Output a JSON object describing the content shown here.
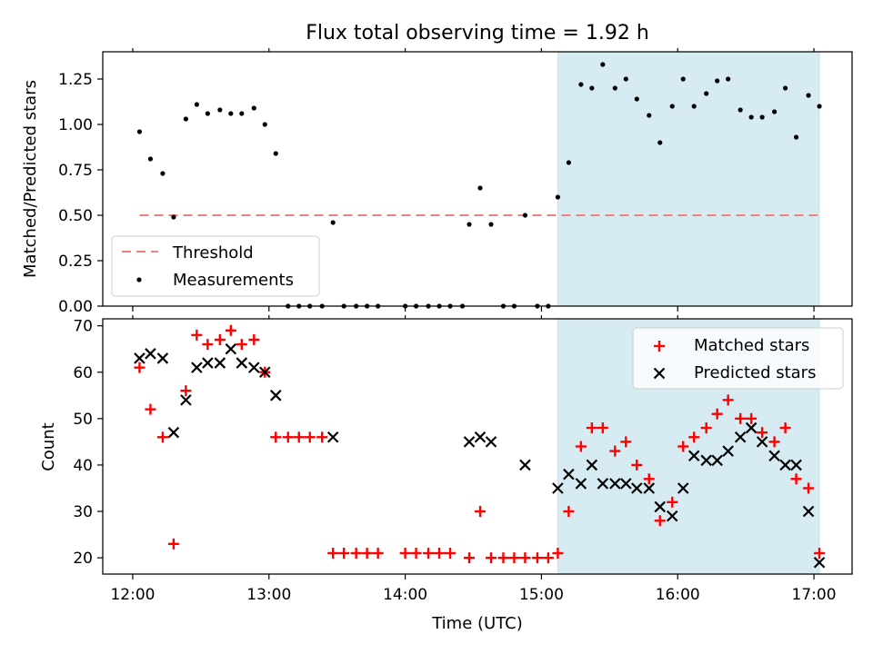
{
  "title": "Flux total observing time = 1.92 h",
  "colors": {
    "threshold": "#f08080",
    "measurement": "#000000",
    "matched": "#ff0000",
    "predicted": "#000000",
    "shade": "#add8e6"
  },
  "chart_data": [
    {
      "type": "scatter",
      "ylabel": "Matched/Predicted stars",
      "xlabel": "",
      "xlim_hours": [
        11.78,
        17.28
      ],
      "ylim": [
        0,
        1.4
      ],
      "yticks": [
        "0.00",
        "0.25",
        "0.50",
        "0.75",
        "1.00",
        "1.25"
      ],
      "shaded_span_hours": [
        15.12,
        17.04
      ],
      "legend_position": "lower-left",
      "legend": [
        "Threshold",
        "Measurements"
      ],
      "threshold": {
        "name": "Threshold",
        "value": 0.5,
        "x_hours": [
          12.05,
          17.04
        ],
        "style": "dashed"
      },
      "series": [
        {
          "name": "Measurements",
          "points": [
            [
              12.05,
              0.96
            ],
            [
              12.13,
              0.81
            ],
            [
              12.22,
              0.73
            ],
            [
              12.3,
              0.49
            ],
            [
              12.39,
              1.03
            ],
            [
              12.47,
              1.11
            ],
            [
              12.55,
              1.06
            ],
            [
              12.64,
              1.08
            ],
            [
              12.72,
              1.06
            ],
            [
              12.8,
              1.06
            ],
            [
              12.89,
              1.09
            ],
            [
              12.97,
              1.0
            ],
            [
              13.05,
              0.84
            ],
            [
              13.14,
              0.0
            ],
            [
              13.22,
              0.0
            ],
            [
              13.3,
              0.0
            ],
            [
              13.39,
              0.0
            ],
            [
              13.47,
              0.46
            ],
            [
              13.55,
              0.0
            ],
            [
              13.64,
              0.0
            ],
            [
              13.72,
              0.0
            ],
            [
              13.8,
              0.0
            ],
            [
              14.0,
              0.0
            ],
            [
              14.08,
              0.0
            ],
            [
              14.17,
              0.0
            ],
            [
              14.25,
              0.0
            ],
            [
              14.33,
              0.0
            ],
            [
              14.42,
              0.0
            ],
            [
              14.47,
              0.45
            ],
            [
              14.55,
              0.65
            ],
            [
              14.63,
              0.45
            ],
            [
              14.72,
              0.0
            ],
            [
              14.8,
              0.0
            ],
            [
              14.88,
              0.5
            ],
            [
              14.97,
              0.0
            ],
            [
              15.05,
              0.0
            ],
            [
              15.12,
              0.6
            ],
            [
              15.2,
              0.79
            ],
            [
              15.29,
              1.22
            ],
            [
              15.37,
              1.2
            ],
            [
              15.45,
              1.33
            ],
            [
              15.54,
              1.2
            ],
            [
              15.62,
              1.25
            ],
            [
              15.7,
              1.14
            ],
            [
              15.79,
              1.05
            ],
            [
              15.87,
              0.9
            ],
            [
              15.96,
              1.1
            ],
            [
              16.04,
              1.25
            ],
            [
              16.12,
              1.1
            ],
            [
              16.21,
              1.17
            ],
            [
              16.29,
              1.24
            ],
            [
              16.37,
              1.25
            ],
            [
              16.46,
              1.08
            ],
            [
              16.54,
              1.04
            ],
            [
              16.62,
              1.04
            ],
            [
              16.71,
              1.07
            ],
            [
              16.79,
              1.2
            ],
            [
              16.87,
              0.93
            ],
            [
              16.96,
              1.16
            ],
            [
              17.04,
              1.1
            ]
          ]
        }
      ]
    },
    {
      "type": "scatter",
      "ylabel": "Count",
      "xlabel": "Time (UTC)",
      "xlim_hours": [
        11.78,
        17.28
      ],
      "ylim": [
        16.5,
        71.5
      ],
      "yticks": [
        "20",
        "30",
        "40",
        "50",
        "60",
        "70"
      ],
      "xticks": [
        {
          "hour": 12,
          "label": "12:00"
        },
        {
          "hour": 13,
          "label": "13:00"
        },
        {
          "hour": 14,
          "label": "14:00"
        },
        {
          "hour": 15,
          "label": "15:00"
        },
        {
          "hour": 16,
          "label": "16:00"
        },
        {
          "hour": 17,
          "label": "17:00"
        }
      ],
      "shaded_span_hours": [
        15.12,
        17.04
      ],
      "legend_position": "upper-right",
      "legend": [
        "Matched stars",
        "Predicted stars"
      ],
      "series": [
        {
          "name": "Matched stars",
          "marker": "plus",
          "points": [
            [
              12.05,
              61
            ],
            [
              12.13,
              52
            ],
            [
              12.22,
              46
            ],
            [
              12.3,
              23
            ],
            [
              12.39,
              56
            ],
            [
              12.47,
              68
            ],
            [
              12.55,
              66
            ],
            [
              12.64,
              67
            ],
            [
              12.72,
              69
            ],
            [
              12.8,
              66
            ],
            [
              12.89,
              67
            ],
            [
              12.97,
              60
            ],
            [
              13.05,
              46
            ],
            [
              13.14,
              46
            ],
            [
              13.22,
              46
            ],
            [
              13.3,
              46
            ],
            [
              13.39,
              46
            ],
            [
              13.47,
              21
            ],
            [
              13.55,
              21
            ],
            [
              13.64,
              21
            ],
            [
              13.72,
              21
            ],
            [
              13.8,
              21
            ],
            [
              14.0,
              21
            ],
            [
              14.08,
              21
            ],
            [
              14.17,
              21
            ],
            [
              14.25,
              21
            ],
            [
              14.33,
              21
            ],
            [
              14.47,
              20
            ],
            [
              14.55,
              30
            ],
            [
              14.63,
              20
            ],
            [
              14.72,
              20
            ],
            [
              14.8,
              20
            ],
            [
              14.88,
              20
            ],
            [
              14.97,
              20
            ],
            [
              15.05,
              20
            ],
            [
              15.12,
              21
            ],
            [
              15.2,
              30
            ],
            [
              15.29,
              44
            ],
            [
              15.37,
              48
            ],
            [
              15.45,
              48
            ],
            [
              15.54,
              43
            ],
            [
              15.62,
              45
            ],
            [
              15.7,
              40
            ],
            [
              15.79,
              37
            ],
            [
              15.87,
              28
            ],
            [
              15.96,
              32
            ],
            [
              16.04,
              44
            ],
            [
              16.12,
              46
            ],
            [
              16.21,
              48
            ],
            [
              16.29,
              51
            ],
            [
              16.37,
              54
            ],
            [
              16.46,
              50
            ],
            [
              16.54,
              50
            ],
            [
              16.62,
              47
            ],
            [
              16.71,
              45
            ],
            [
              16.79,
              48
            ],
            [
              16.87,
              37
            ],
            [
              16.96,
              35
            ],
            [
              17.04,
              21
            ]
          ]
        },
        {
          "name": "Predicted stars",
          "marker": "x",
          "points": [
            [
              12.05,
              63
            ],
            [
              12.13,
              64
            ],
            [
              12.22,
              63
            ],
            [
              12.3,
              47
            ],
            [
              12.39,
              54
            ],
            [
              12.47,
              61
            ],
            [
              12.55,
              62
            ],
            [
              12.64,
              62
            ],
            [
              12.72,
              65
            ],
            [
              12.8,
              62
            ],
            [
              12.89,
              61
            ],
            [
              12.97,
              60
            ],
            [
              13.05,
              55
            ],
            [
              13.47,
              46
            ],
            [
              14.47,
              45
            ],
            [
              14.55,
              46
            ],
            [
              14.63,
              45
            ],
            [
              14.88,
              40
            ],
            [
              15.12,
              35
            ],
            [
              15.2,
              38
            ],
            [
              15.29,
              36
            ],
            [
              15.37,
              40
            ],
            [
              15.45,
              36
            ],
            [
              15.54,
              36
            ],
            [
              15.62,
              36
            ],
            [
              15.7,
              35
            ],
            [
              15.79,
              35
            ],
            [
              15.87,
              31
            ],
            [
              15.96,
              29
            ],
            [
              16.04,
              35
            ],
            [
              16.12,
              42
            ],
            [
              16.21,
              41
            ],
            [
              16.29,
              41
            ],
            [
              16.37,
              43
            ],
            [
              16.46,
              46
            ],
            [
              16.54,
              48
            ],
            [
              16.62,
              45
            ],
            [
              16.71,
              42
            ],
            [
              16.79,
              40
            ],
            [
              16.87,
              40
            ],
            [
              16.96,
              30
            ],
            [
              17.04,
              19
            ]
          ]
        }
      ]
    }
  ]
}
